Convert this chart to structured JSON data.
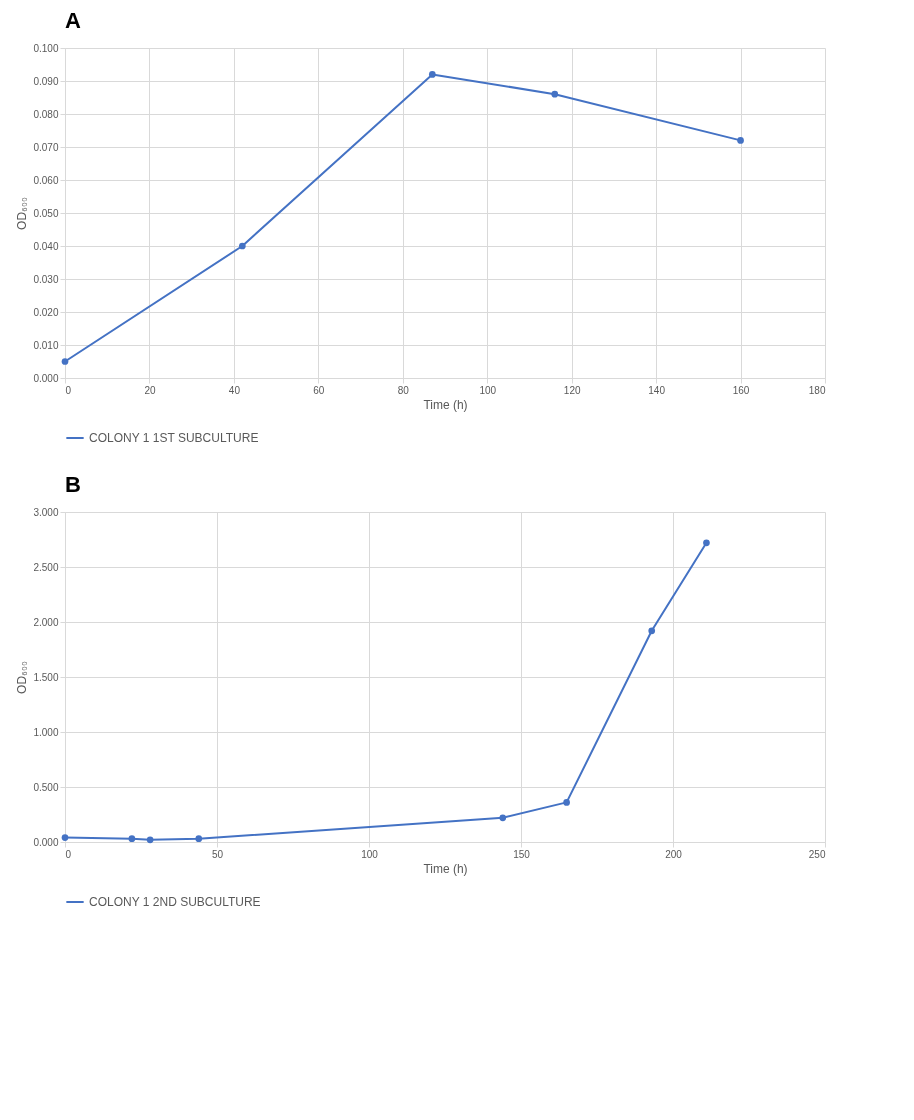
{
  "chart_data": [
    {
      "type": "line",
      "title": "A",
      "xlabel": "Time (h)",
      "ylabel": "OD₆₀₀",
      "x": [
        0,
        42,
        87,
        116,
        160
      ],
      "series": [
        {
          "name": "COLONY 1 1ST SUBCULTURE",
          "color": "#4472c4",
          "values": [
            0.005,
            0.04,
            0.092,
            0.086,
            0.072
          ]
        }
      ],
      "xlim": [
        0,
        180
      ],
      "xticks": [
        0,
        20,
        40,
        60,
        80,
        100,
        120,
        140,
        160,
        180
      ],
      "ylim": [
        0,
        0.1
      ],
      "yticks": [
        {
          "value": 0,
          "label": "0.000"
        },
        {
          "value": 0.01,
          "label": "0.010"
        },
        {
          "value": 0.02,
          "label": "0.020"
        },
        {
          "value": 0.03,
          "label": "0.030"
        },
        {
          "value": 0.04,
          "label": "0.040"
        },
        {
          "value": 0.05,
          "label": "0.050"
        },
        {
          "value": 0.06,
          "label": "0.060"
        },
        {
          "value": 0.07,
          "label": "0.070"
        },
        {
          "value": 0.08,
          "label": "0.080"
        },
        {
          "value": 0.09,
          "label": "0.090"
        },
        {
          "value": 0.1,
          "label": "0.100"
        }
      ],
      "grid": true,
      "legend": "bottom",
      "marker": "circle",
      "line_style": "solid"
    },
    {
      "type": "line",
      "title": "B",
      "xlabel": "Time (h)",
      "ylabel": "OD₆₀₀",
      "x": [
        0,
        22,
        28,
        44,
        144,
        165,
        193,
        211
      ],
      "series": [
        {
          "name": "COLONY 1 2ND SUBCULTURE",
          "color": "#4472c4",
          "values": [
            0.04,
            0.03,
            0.02,
            0.03,
            0.22,
            0.36,
            1.92,
            2.72
          ]
        }
      ],
      "xlim": [
        0,
        250
      ],
      "xticks": [
        0,
        50,
        100,
        150,
        200,
        250
      ],
      "ylim": [
        0,
        3
      ],
      "yticks": [
        {
          "value": 0,
          "label": "0.000"
        },
        {
          "value": 0.5,
          "label": "0.500"
        },
        {
          "value": 1,
          "label": "1.000"
        },
        {
          "value": 1.5,
          "label": "1.500"
        },
        {
          "value": 2,
          "label": "2.000"
        },
        {
          "value": 2.5,
          "label": "2.500"
        },
        {
          "value": 3,
          "label": "3.000"
        }
      ],
      "grid": true,
      "legend": "bottom",
      "marker": "circle",
      "line_style": "solid"
    }
  ]
}
